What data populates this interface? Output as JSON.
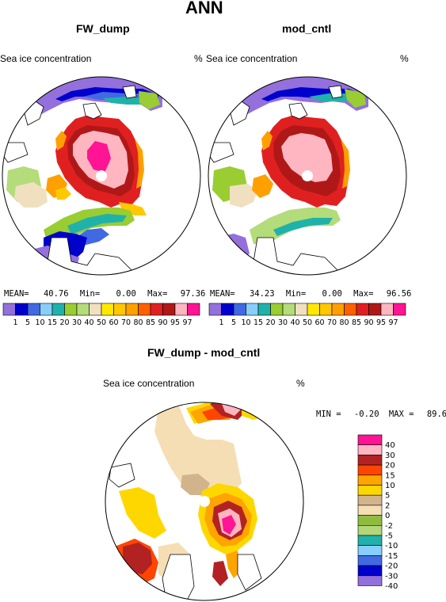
{
  "title": "ANN",
  "palette_abs": [
    "#9370db",
    "#0000cd",
    "#4169e1",
    "#87cefa",
    "#20b2aa",
    "#9acd32",
    "#b4dc7a",
    "#f0e0c0",
    "#ffe800",
    "#ffc800",
    "#ffa000",
    "#ff6000",
    "#e02020",
    "#b01818",
    "#ffb6c1",
    "#ff1493"
  ],
  "palette_diff": [
    "#ff1493",
    "#ffb6c1",
    "#b22222",
    "#ff4500",
    "#ffa500",
    "#ffd700",
    "#d2b48c",
    "#f5deb3",
    "#8fbc3f",
    "#b2d67a",
    "#20b2aa",
    "#87cefa",
    "#4169e1",
    "#0000cd",
    "#9370db"
  ],
  "chart_data": [
    {
      "type": "heatmap",
      "title": "FW_dump",
      "subtitle_left": "Sea ice concentration",
      "units": "%",
      "stats": {
        "mean_label": "MEAN=",
        "mean": "40.76",
        "min_label": "Min=",
        "min": "0.00",
        "max_label": "Max=",
        "max": "97.36"
      },
      "colorbar_ticks": [
        "1",
        "5",
        "10",
        "15",
        "20",
        "30",
        "40",
        "50",
        "60",
        "70",
        "80",
        "85",
        "90",
        "95",
        "97"
      ]
    },
    {
      "type": "heatmap",
      "title": "mod_cntl",
      "subtitle_left": "Sea ice concentration",
      "units": "%",
      "stats": {
        "mean_label": "MEAN=",
        "mean": "34.23",
        "min_label": "Min=",
        "min": "0.00",
        "max_label": "Max=",
        "max": "96.56"
      },
      "colorbar_ticks": [
        "1",
        "5",
        "10",
        "15",
        "20",
        "30",
        "40",
        "50",
        "60",
        "70",
        "80",
        "85",
        "90",
        "95",
        "97"
      ]
    },
    {
      "type": "heatmap",
      "title": "FW_dump - mod_cntl",
      "subtitle_left": "Sea ice concentration",
      "units": "%",
      "stats": {
        "min_label": "MIN =",
        "min": "-0.20",
        "max_label": "MAX =",
        "max": "89.60"
      },
      "colorbar_ticks": [
        "40",
        "30",
        "20",
        "15",
        "10",
        "5",
        "2",
        "0",
        "-2",
        "-5",
        "-10",
        "-15",
        "-20",
        "-30",
        "-40"
      ]
    }
  ]
}
